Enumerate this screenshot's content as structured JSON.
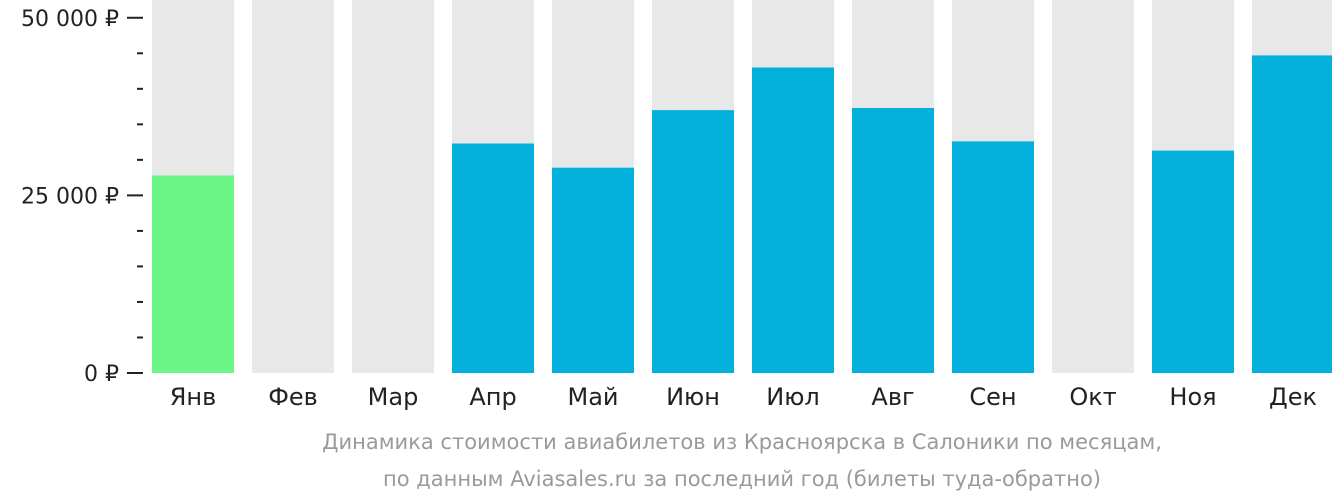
{
  "chart_data": {
    "type": "bar",
    "categories": [
      "Янв",
      "Фев",
      "Мар",
      "Апр",
      "Май",
      "Июн",
      "Июл",
      "Авг",
      "Сен",
      "Окт",
      "Ноя",
      "Дек"
    ],
    "values": [
      27800,
      null,
      null,
      32300,
      28900,
      37000,
      43000,
      37300,
      32600,
      null,
      31300,
      44700
    ],
    "ylim": [
      0,
      52500
    ],
    "y_ticks": [
      {
        "value": 0,
        "label": "0 ₽"
      },
      {
        "value": 25000,
        "label": "25 000 ₽"
      },
      {
        "value": 50000,
        "label": "50 000 ₽"
      }
    ],
    "y_minor_step": 5000,
    "caption_line1": "Динамика стоимости авиабилетов из Красноярска в Салоники по месяцам,",
    "caption_line2": "по данным Aviasales.ru за последний год (билеты туда-обратно)",
    "cheapest_index": 0,
    "colors": {
      "bar": "#03b0dc",
      "cheapest_bar": "#6af586",
      "background_bar": "#e8e8e8",
      "axis": "#222222"
    }
  }
}
